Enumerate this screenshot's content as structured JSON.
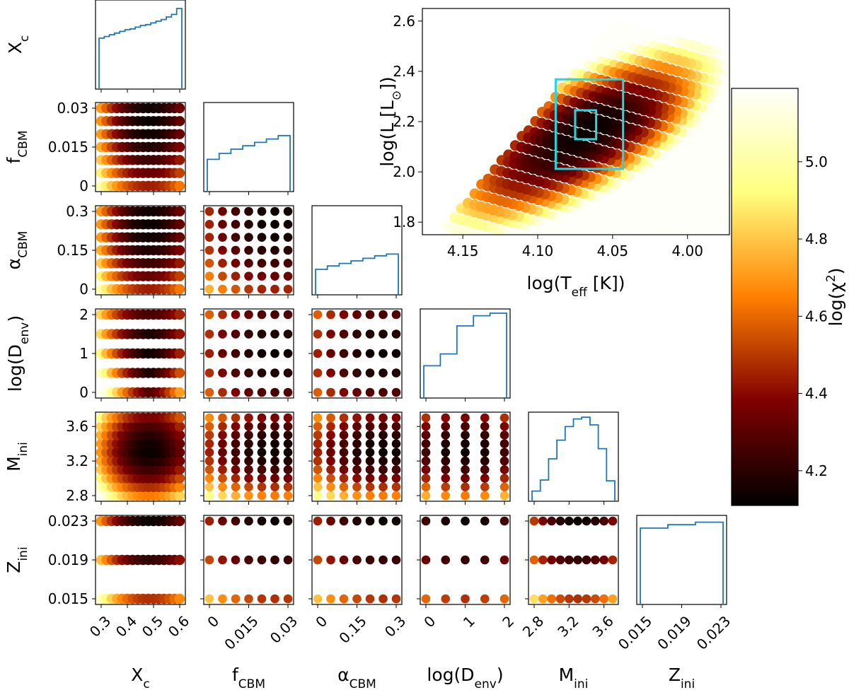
{
  "chart_data": {
    "type": "corner",
    "title": "",
    "parameters": [
      {
        "key": "Xc",
        "label": "X",
        "sub": "c",
        "range": [
          0.3,
          0.6
        ],
        "ticks": [
          0.3,
          0.4,
          0.5,
          0.6
        ],
        "tick_labels": [
          "0.3",
          "0.4",
          "0.5",
          "0.6"
        ]
      },
      {
        "key": "fCBM",
        "label": "f",
        "sub": "CBM",
        "range": [
          0,
          0.03
        ],
        "ticks": [
          0,
          0.015,
          0.03
        ],
        "tick_labels": [
          "0",
          "0.015",
          "0.03"
        ]
      },
      {
        "key": "aCBM",
        "label": "α",
        "sub": "CBM",
        "range": [
          0,
          0.3
        ],
        "ticks": [
          0,
          0.15,
          0.3
        ],
        "tick_labels": [
          "0",
          "0.15",
          "0.3"
        ]
      },
      {
        "key": "logDenv",
        "label": "log(D",
        "sub": "env",
        "suffix": ")",
        "range": [
          0,
          2
        ],
        "ticks": [
          0,
          1,
          2
        ],
        "tick_labels": [
          "0",
          "1",
          "2"
        ]
      },
      {
        "key": "Mini",
        "label": "M",
        "sub": "ini",
        "range": [
          2.8,
          3.7
        ],
        "ticks": [
          2.8,
          3.2,
          3.6
        ],
        "tick_labels": [
          "2.8",
          "3.2",
          "3.6"
        ]
      },
      {
        "key": "Zini",
        "label": "Z",
        "sub": "ini",
        "range": [
          0.015,
          0.023
        ],
        "ticks": [
          0.015,
          0.019,
          0.023
        ],
        "tick_labels": [
          "0.015",
          "0.019",
          "0.023"
        ]
      }
    ],
    "grids": {
      "Xc": [
        0.3,
        0.32,
        0.34,
        0.36,
        0.38,
        0.4,
        0.42,
        0.44,
        0.46,
        0.48,
        0.5,
        0.52,
        0.54,
        0.56,
        0.58,
        0.6
      ],
      "fCBM": [
        0,
        0.005,
        0.01,
        0.015,
        0.02,
        0.025,
        0.03
      ],
      "aCBM": [
        0,
        0.05,
        0.1,
        0.15,
        0.2,
        0.25,
        0.3
      ],
      "logDenv": [
        0,
        0.5,
        1,
        1.5,
        2
      ],
      "Mini": [
        2.8,
        2.9,
        3.0,
        3.1,
        3.2,
        3.3,
        3.4,
        3.5,
        3.6,
        3.7
      ],
      "Zini": [
        0.015,
        0.019,
        0.023
      ]
    },
    "best_fit": {
      "Xc": 0.49,
      "fCBM": 0.025,
      "aCBM": 0.25,
      "logDenv": 1,
      "Mini": 3.3,
      "Zini": 0.023
    },
    "histograms": {
      "Xc": [
        0.6,
        0.62,
        0.64,
        0.66,
        0.68,
        0.7,
        0.71,
        0.73,
        0.75,
        0.76,
        0.78,
        0.8,
        0.82,
        0.85,
        0.88,
        0.95
      ],
      "fCBM": [
        0.38,
        0.45,
        0.5,
        0.54,
        0.58,
        0.62,
        0.66
      ],
      "aCBM": [
        0.3,
        0.34,
        0.37,
        0.4,
        0.43,
        0.46,
        0.48
      ],
      "logDenv": [
        0.38,
        0.52,
        0.85,
        0.97,
        1.0
      ],
      "Mini": [
        0.12,
        0.25,
        0.5,
        0.72,
        0.88,
        0.97,
        0.99,
        0.9,
        0.62,
        0.24
      ],
      "Zini": [
        0.9,
        0.94,
        0.97
      ]
    },
    "hr_diagram": {
      "xlabel": "log(T",
      "xlabel_sub": "eff",
      "xlabel_suffix": " [K])",
      "ylabel": "log(L [L",
      "ylabel_sub": "⊙",
      "ylabel_suffix": "])",
      "xlim": [
        4.177,
        3.972
      ],
      "ylim": [
        1.75,
        2.65
      ],
      "xticks": [
        4.15,
        4.1,
        4.05,
        4.0
      ],
      "xtick_labels": [
        "4.15",
        "4.10",
        "4.05",
        "4.00"
      ],
      "yticks": [
        1.8,
        2.0,
        2.2,
        2.4,
        2.6
      ],
      "ytick_labels": [
        "1.8",
        "2.0",
        "2.2",
        "2.4",
        "2.6"
      ],
      "box_outer": {
        "logTeff": [
          4.088,
          4.043
        ],
        "logL": [
          2.012,
          2.368
        ]
      },
      "box_inner": {
        "logTeff": [
          4.075,
          4.061
        ],
        "logL": [
          2.13,
          2.245
        ]
      },
      "box_color": "#22d8e0"
    },
    "colorbar": {
      "label": "log(χ",
      "label_sup": "2",
      "label_suffix": ")",
      "range": [
        4.11,
        5.19
      ],
      "ticks": [
        4.2,
        4.4,
        4.6,
        4.8,
        5.0
      ],
      "tick_labels": [
        "4.2",
        "4.4",
        "4.6",
        "4.8",
        "5.0"
      ],
      "colormap": "afmhot"
    },
    "hist_color": "#1f77b4"
  }
}
